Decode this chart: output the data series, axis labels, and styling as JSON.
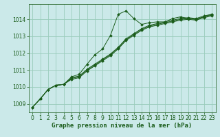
{
  "background_color": "#cbe9e9",
  "grid_color": "#99ccbb",
  "line_color": "#1a5c1a",
  "marker_color": "#1a5c1a",
  "xlabel": "Graphe pression niveau de la mer (hPa)",
  "xlabel_fontsize": 6.5,
  "tick_fontsize": 5.5,
  "xlim": [
    -0.5,
    23.5
  ],
  "ylim": [
    1008.5,
    1014.9
  ],
  "yticks": [
    1009,
    1010,
    1011,
    1012,
    1013,
    1014
  ],
  "xticks": [
    0,
    1,
    2,
    3,
    4,
    5,
    6,
    7,
    8,
    9,
    10,
    11,
    12,
    13,
    14,
    15,
    16,
    17,
    18,
    19,
    20,
    21,
    22,
    23
  ],
  "series": [
    [
      1008.8,
      1009.3,
      1009.85,
      1010.1,
      1010.15,
      1010.6,
      1010.75,
      1011.35,
      1011.9,
      1012.25,
      1013.05,
      1014.3,
      1014.5,
      1014.05,
      1013.7,
      1013.8,
      1013.85,
      1013.85,
      1014.05,
      1014.15,
      1014.05,
      1014.0,
      1014.15,
      1014.3
    ],
    [
      1008.8,
      1009.3,
      1009.85,
      1010.1,
      1010.15,
      1010.55,
      1010.65,
      1011.05,
      1011.35,
      1011.65,
      1011.95,
      1012.35,
      1012.85,
      1013.15,
      1013.45,
      1013.65,
      1013.75,
      1013.85,
      1013.95,
      1014.05,
      1014.1,
      1014.05,
      1014.2,
      1014.3
    ],
    [
      1008.8,
      1009.3,
      1009.85,
      1010.1,
      1010.15,
      1010.5,
      1010.6,
      1011.0,
      1011.3,
      1011.6,
      1011.9,
      1012.3,
      1012.8,
      1013.1,
      1013.4,
      1013.6,
      1013.7,
      1013.8,
      1013.9,
      1014.0,
      1014.05,
      1014.0,
      1014.15,
      1014.25
    ],
    [
      1008.8,
      1009.3,
      1009.85,
      1010.1,
      1010.15,
      1010.45,
      1010.55,
      1010.95,
      1011.25,
      1011.55,
      1011.85,
      1012.25,
      1012.75,
      1013.05,
      1013.35,
      1013.55,
      1013.65,
      1013.75,
      1013.85,
      1013.95,
      1014.0,
      1013.95,
      1014.1,
      1014.2
    ]
  ]
}
